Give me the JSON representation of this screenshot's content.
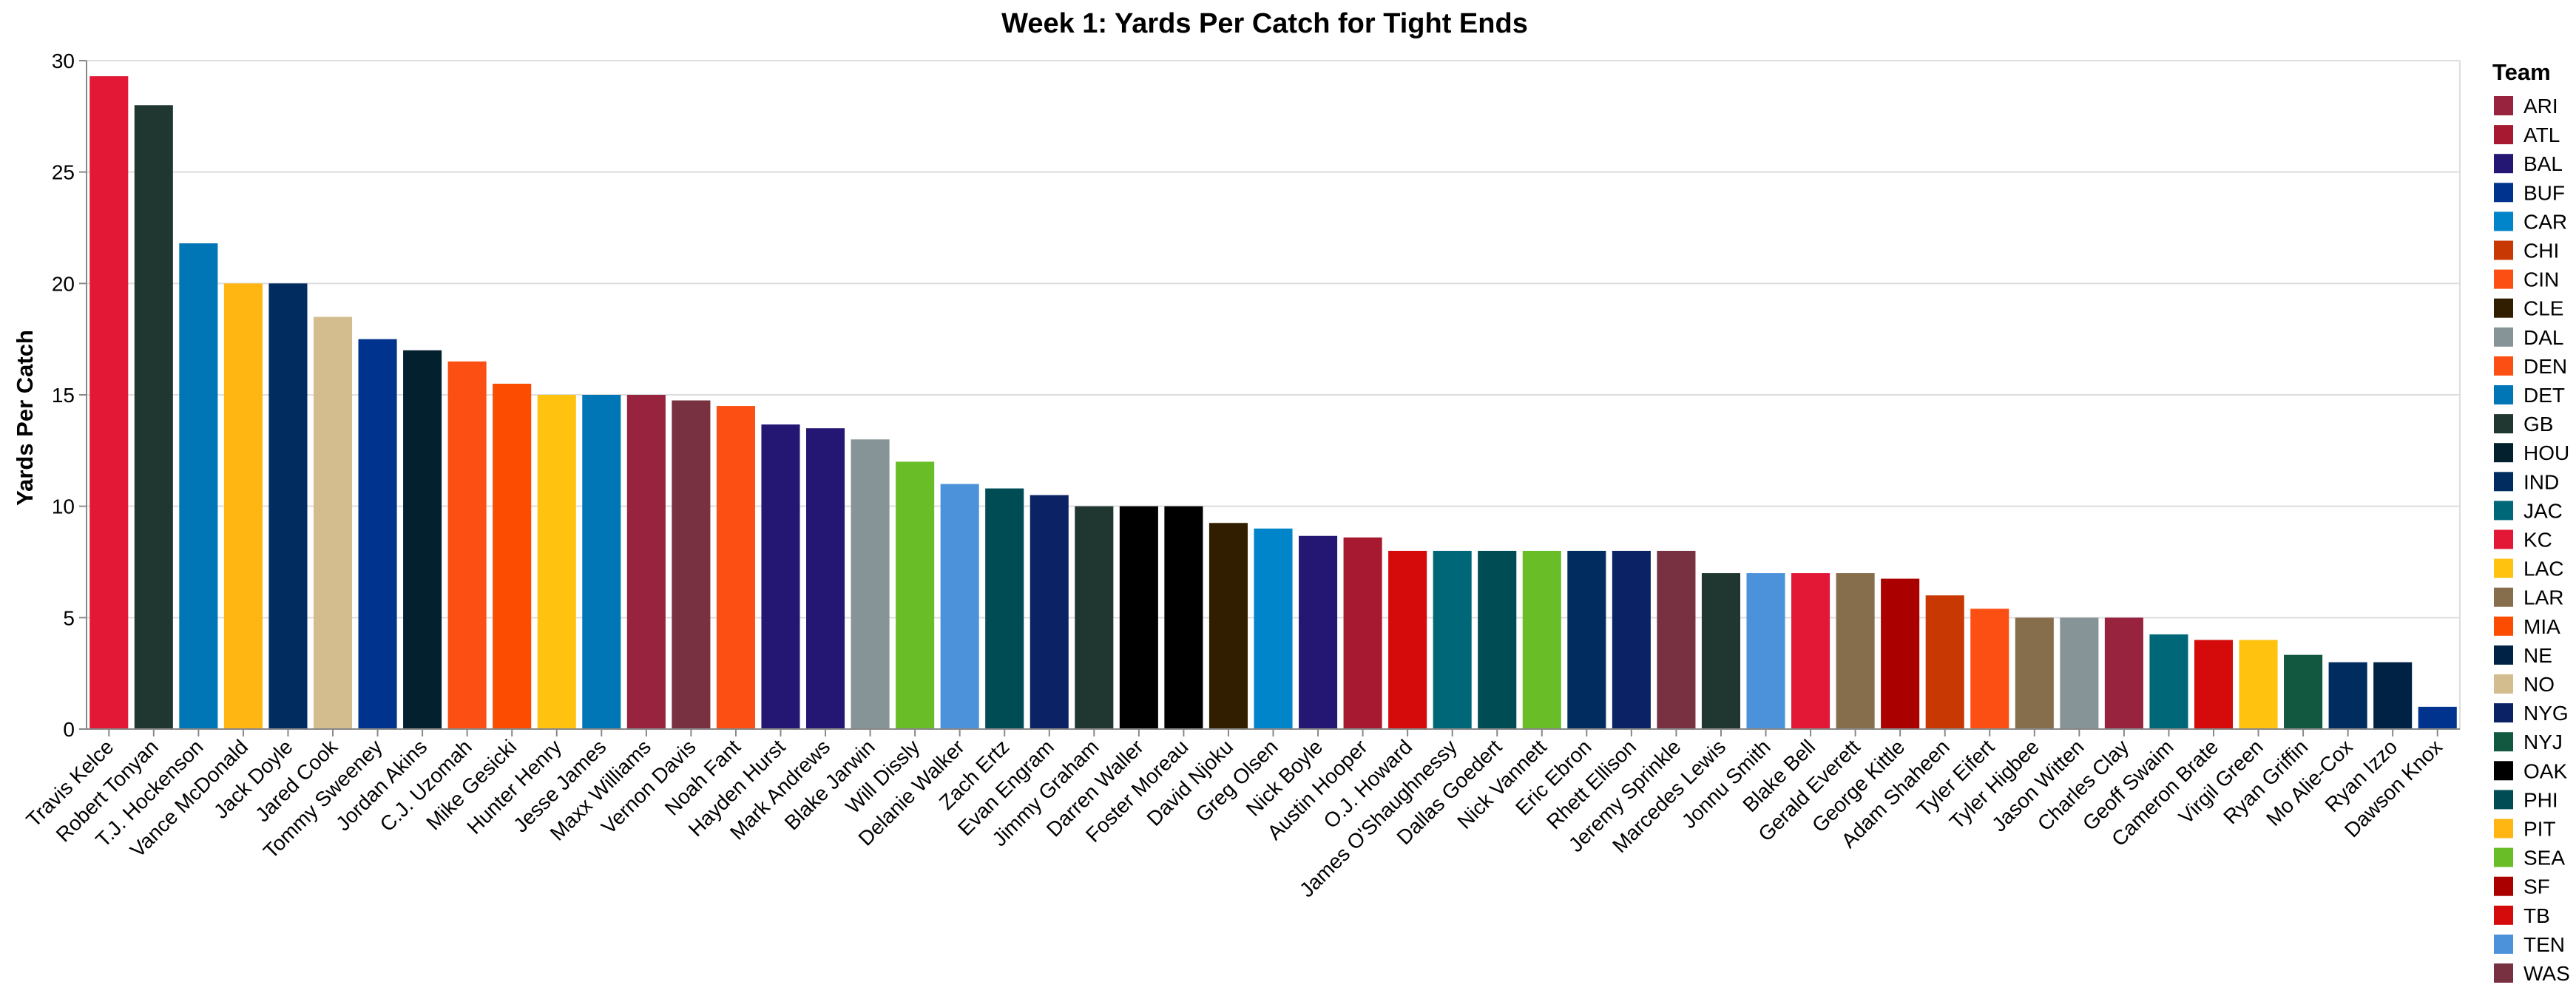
{
  "chart_data": {
    "type": "bar",
    "title": "Week 1: Yards Per Catch for Tight Ends",
    "xlabel": "",
    "ylabel": "Yards Per Catch",
    "ylim": [
      0,
      30
    ],
    "yticks": [
      0,
      5,
      10,
      15,
      20,
      25,
      30
    ],
    "grid": true,
    "legend": {
      "title": "Team",
      "position": "right"
    },
    "teams": [
      {
        "name": "ARI",
        "color": "#97233F"
      },
      {
        "name": "ATL",
        "color": "#A71930"
      },
      {
        "name": "BAL",
        "color": "#241773"
      },
      {
        "name": "BUF",
        "color": "#00338D"
      },
      {
        "name": "CAR",
        "color": "#0085CA"
      },
      {
        "name": "CHI",
        "color": "#C83803"
      },
      {
        "name": "CIN",
        "color": "#FB4F14"
      },
      {
        "name": "CLE",
        "color": "#311D00"
      },
      {
        "name": "DAL",
        "color": "#869397"
      },
      {
        "name": "DEN",
        "color": "#FB4F14"
      },
      {
        "name": "DET",
        "color": "#0076B6"
      },
      {
        "name": "GB",
        "color": "#203731"
      },
      {
        "name": "HOU",
        "color": "#03202F"
      },
      {
        "name": "IND",
        "color": "#002C5F"
      },
      {
        "name": "JAC",
        "color": "#006778"
      },
      {
        "name": "KC",
        "color": "#E31837"
      },
      {
        "name": "LAC",
        "color": "#FFC20E"
      },
      {
        "name": "LAR",
        "color": "#866D4B"
      },
      {
        "name": "MIA",
        "color": "#FC4C02"
      },
      {
        "name": "NE",
        "color": "#002244"
      },
      {
        "name": "NO",
        "color": "#D3BC8D"
      },
      {
        "name": "NYG",
        "color": "#0B2265"
      },
      {
        "name": "NYJ",
        "color": "#125740"
      },
      {
        "name": "OAK",
        "color": "#000000"
      },
      {
        "name": "PHI",
        "color": "#004C54"
      },
      {
        "name": "PIT",
        "color": "#FFB612"
      },
      {
        "name": "SEA",
        "color": "#69BE28"
      },
      {
        "name": "SF",
        "color": "#AA0000"
      },
      {
        "name": "TB",
        "color": "#D50A0A"
      },
      {
        "name": "TEN",
        "color": "#4B92DB"
      },
      {
        "name": "WAS",
        "color": "#773141"
      }
    ],
    "bars": [
      {
        "player": "Travis Kelce",
        "team": "KC",
        "value": 29.3
      },
      {
        "player": "Robert Tonyan",
        "team": "GB",
        "value": 28.0
      },
      {
        "player": "T.J. Hockenson",
        "team": "DET",
        "value": 21.8
      },
      {
        "player": "Vance McDonald",
        "team": "PIT",
        "value": 20.0
      },
      {
        "player": "Jack Doyle",
        "team": "IND",
        "value": 20.0
      },
      {
        "player": "Jared Cook",
        "team": "NO",
        "value": 18.5
      },
      {
        "player": "Tommy Sweeney",
        "team": "BUF",
        "value": 17.5
      },
      {
        "player": "Jordan Akins",
        "team": "HOU",
        "value": 17.0
      },
      {
        "player": "C.J. Uzomah",
        "team": "CIN",
        "value": 16.5
      },
      {
        "player": "Mike Gesicki",
        "team": "MIA",
        "value": 15.5
      },
      {
        "player": "Hunter Henry",
        "team": "LAC",
        "value": 15.0
      },
      {
        "player": "Jesse James",
        "team": "DET",
        "value": 15.0
      },
      {
        "player": "Maxx Williams",
        "team": "ARI",
        "value": 15.0
      },
      {
        "player": "Vernon Davis",
        "team": "WAS",
        "value": 14.75
      },
      {
        "player": "Noah Fant",
        "team": "DEN",
        "value": 14.5
      },
      {
        "player": "Hayden Hurst",
        "team": "BAL",
        "value": 13.67
      },
      {
        "player": "Mark Andrews",
        "team": "BAL",
        "value": 13.5
      },
      {
        "player": "Blake Jarwin",
        "team": "DAL",
        "value": 13.0
      },
      {
        "player": "Will Dissly",
        "team": "SEA",
        "value": 12.0
      },
      {
        "player": "Delanie Walker",
        "team": "TEN",
        "value": 11.0
      },
      {
        "player": "Zach Ertz",
        "team": "PHI",
        "value": 10.8
      },
      {
        "player": "Evan Engram",
        "team": "NYG",
        "value": 10.5
      },
      {
        "player": "Jimmy Graham",
        "team": "GB",
        "value": 10.0
      },
      {
        "player": "Darren Waller",
        "team": "OAK",
        "value": 10.0
      },
      {
        "player": "Foster Moreau",
        "team": "OAK",
        "value": 10.0
      },
      {
        "player": "David Njoku",
        "team": "CLE",
        "value": 9.25
      },
      {
        "player": "Greg Olsen",
        "team": "CAR",
        "value": 9.0
      },
      {
        "player": "Nick Boyle",
        "team": "BAL",
        "value": 8.67
      },
      {
        "player": "Austin Hooper",
        "team": "ATL",
        "value": 8.6
      },
      {
        "player": "O.J. Howard",
        "team": "TB",
        "value": 8.0
      },
      {
        "player": "James O'Shaughnessy",
        "team": "JAC",
        "value": 8.0
      },
      {
        "player": "Dallas Goedert",
        "team": "PHI",
        "value": 8.0
      },
      {
        "player": "Nick Vannett",
        "team": "SEA",
        "value": 8.0
      },
      {
        "player": "Eric Ebron",
        "team": "IND",
        "value": 8.0
      },
      {
        "player": "Rhett Ellison",
        "team": "NYG",
        "value": 8.0
      },
      {
        "player": "Jeremy Sprinkle",
        "team": "WAS",
        "value": 8.0
      },
      {
        "player": "Marcedes Lewis",
        "team": "GB",
        "value": 7.0
      },
      {
        "player": "Jonnu Smith",
        "team": "TEN",
        "value": 7.0
      },
      {
        "player": "Blake Bell",
        "team": "KC",
        "value": 7.0
      },
      {
        "player": "Gerald Everett",
        "team": "LAR",
        "value": 7.0
      },
      {
        "player": "George Kittle",
        "team": "SF",
        "value": 6.75
      },
      {
        "player": "Adam Shaheen",
        "team": "CHI",
        "value": 6.0
      },
      {
        "player": "Tyler Eifert",
        "team": "CIN",
        "value": 5.4
      },
      {
        "player": "Tyler Higbee",
        "team": "LAR",
        "value": 5.0
      },
      {
        "player": "Jason Witten",
        "team": "DAL",
        "value": 5.0
      },
      {
        "player": "Charles Clay",
        "team": "ARI",
        "value": 5.0
      },
      {
        "player": "Geoff Swaim",
        "team": "JAC",
        "value": 4.25
      },
      {
        "player": "Cameron Brate",
        "team": "TB",
        "value": 4.0
      },
      {
        "player": "Virgil Green",
        "team": "LAC",
        "value": 4.0
      },
      {
        "player": "Ryan Griffin",
        "team": "NYJ",
        "value": 3.33
      },
      {
        "player": "Mo Alie-Cox",
        "team": "IND",
        "value": 3.0
      },
      {
        "player": "Ryan Izzo",
        "team": "NE",
        "value": 3.0
      },
      {
        "player": "Dawson Knox",
        "team": "BUF",
        "value": 1.0
      }
    ]
  }
}
